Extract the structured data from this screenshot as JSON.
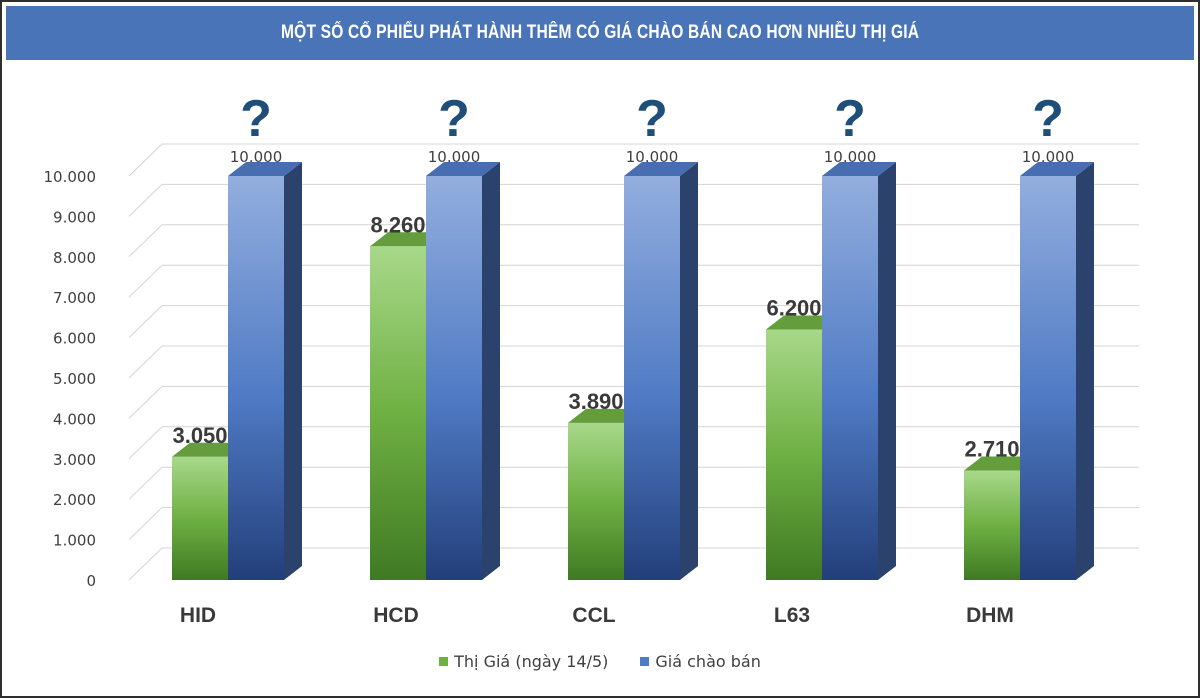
{
  "title": "MỘT SỐ CỔ PHIẾU PHÁT HÀNH THÊM CÓ GIÁ CHÀO BÁN CAO HƠN NHIỀU THỊ GIÁ",
  "chart_data": {
    "type": "bar",
    "categories": [
      "HID",
      "HCD",
      "CCL",
      "L63",
      "DHM"
    ],
    "series": [
      {
        "name": "Thị Giá (ngày 14/5)",
        "values": [
          3050,
          8260,
          3890,
          6200,
          2710
        ],
        "labels": [
          "3.050",
          "8.260",
          "3.890",
          "6.200",
          "2.710"
        ],
        "color": "#6fb043"
      },
      {
        "name": "Giá chào bán",
        "values": [
          10000,
          10000,
          10000,
          10000,
          10000
        ],
        "labels": [
          "10.000",
          "10.000",
          "10.000",
          "10.000",
          "10.000"
        ],
        "color": "#4f7ac4"
      }
    ],
    "annotation": "?",
    "yticks": [
      0,
      1000,
      2000,
      3000,
      4000,
      5000,
      6000,
      7000,
      8000,
      9000,
      10000
    ],
    "ytick_labels": [
      "0",
      "1.000",
      "2.000",
      "3.000",
      "4.000",
      "5.000",
      "6.000",
      "7.000",
      "8.000",
      "9.000",
      "10.000"
    ],
    "ylim": [
      0,
      10000
    ],
    "grid": true,
    "legend_position": "bottom",
    "style": "3d-column"
  }
}
